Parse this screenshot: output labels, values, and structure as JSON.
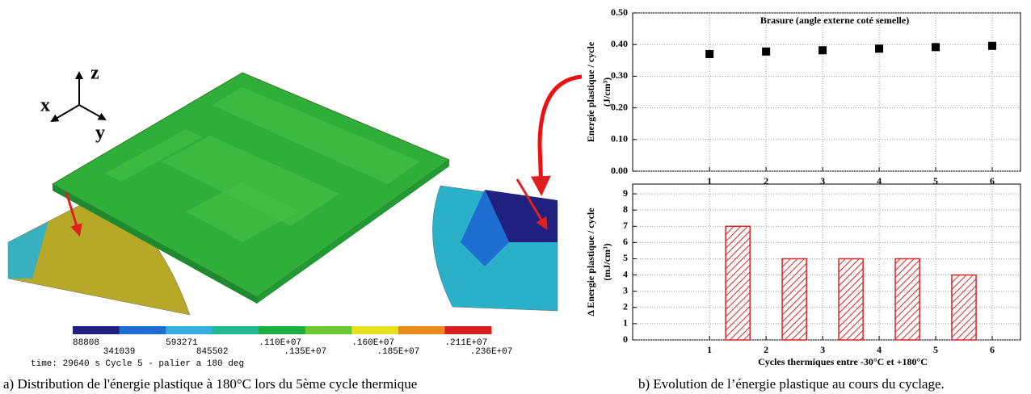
{
  "figure_a": {
    "axes": [
      "x",
      "y",
      "z"
    ],
    "colorbar": {
      "labels": [
        "88808",
        "341039",
        "593271",
        "845502",
        ".110E+07",
        ".135E+07",
        ".160E+07",
        ".185E+07",
        ".211E+07",
        ".236E+07"
      ],
      "colors": [
        "#202080",
        "#1e6ed2",
        "#34aee0",
        "#22b890",
        "#1cae3c",
        "#6cc832",
        "#e8e020",
        "#e88a20",
        "#d82020"
      ]
    },
    "time": "time: 29640 s Cycle 5 - palier a 180 deg",
    "caption": "a) Distribution de l'énergie plastique à 180°C lors du 5ème cycle thermique"
  },
  "figure_b": {
    "caption": "b) Evolution de l’énergie plastique au cours du cyclage."
  },
  "chart_data": [
    {
      "type": "scatter",
      "title": "Brasure (angle externe coté semelle)",
      "ylabel": [
        "Energie plastique / cycle",
        "(J/cm³)"
      ],
      "x": [
        1,
        2,
        3,
        4,
        5,
        6
      ],
      "values": [
        0.37,
        0.378,
        0.382,
        0.387,
        0.392,
        0.396
      ],
      "color": "#000000",
      "xlim": [
        -0.36,
        6.5
      ],
      "xticks": [
        1,
        2,
        3,
        4,
        5,
        6
      ],
      "ylim": [
        0,
        0.5
      ],
      "yticks": [
        {
          "value": 0,
          "label": "0.00"
        },
        {
          "value": 0.1,
          "label": "0.10"
        },
        {
          "value": 0.2,
          "label": "0.20"
        },
        {
          "value": 0.3,
          "label": "0.30"
        },
        {
          "value": 0.4,
          "label": "0.40"
        },
        {
          "value": 0.5,
          "label": "0.50"
        }
      ],
      "grid": true
    },
    {
      "type": "bar",
      "xlabel": "Cycles thermiques entre -30°C et +180°C",
      "ylabel": [
        "Δ Energie plastique / cycle",
        "(mJ/cm³)"
      ],
      "x": [
        1.5,
        2.5,
        3.5,
        4.5,
        5.5
      ],
      "values": [
        7,
        5,
        5,
        5,
        4
      ],
      "color": "#d62728",
      "xlim": [
        -0.36,
        6.5
      ],
      "xticks": [
        1,
        2,
        3,
        4,
        5,
        6
      ],
      "ylim": [
        0,
        9.6
      ],
      "yticks": [
        0,
        1,
        2,
        3,
        4,
        5,
        6,
        7,
        8,
        9
      ],
      "grid": true
    }
  ]
}
